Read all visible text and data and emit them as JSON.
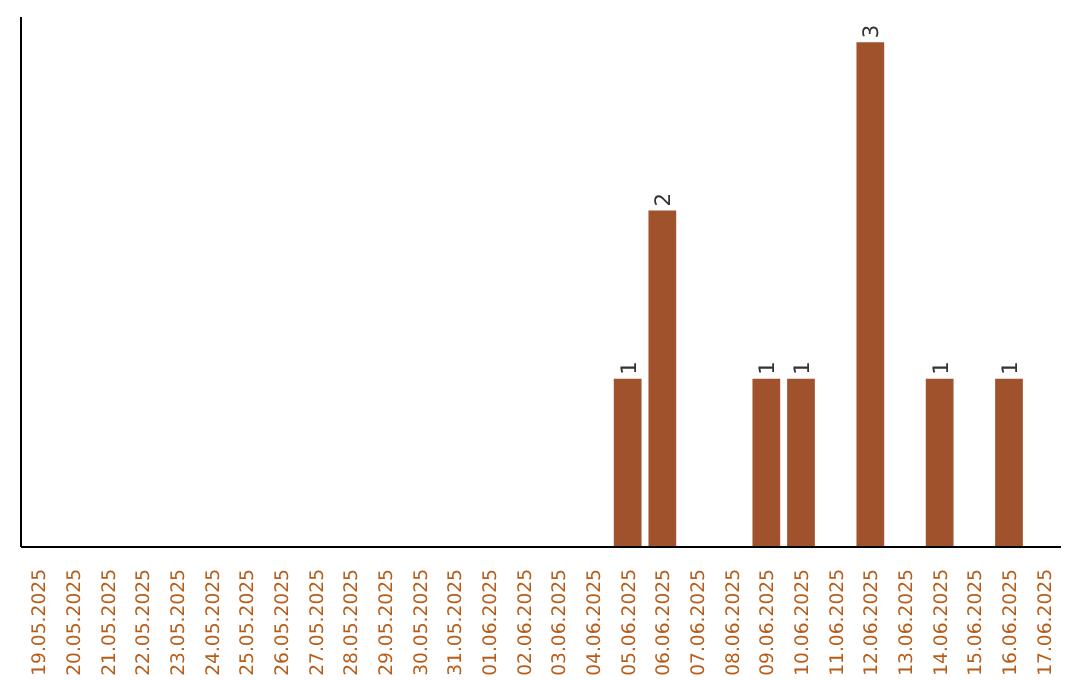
{
  "chart_data": {
    "type": "bar",
    "categories": [
      "19.05.2025",
      "20.05.2025",
      "21.05.2025",
      "22.05.2025",
      "23.05.2025",
      "24.05.2025",
      "25.05.2025",
      "26.05.2025",
      "27.05.2025",
      "28.05.2025",
      "29.05.2025",
      "30.05.2025",
      "31.05.2025",
      "01.06.2025",
      "02.06.2025",
      "03.06.2025",
      "04.06.2025",
      "05.06.2025",
      "06.06.2025",
      "07.06.2025",
      "08.06.2025",
      "09.06.2025",
      "10.06.2025",
      "11.06.2025",
      "12.06.2025",
      "13.06.2025",
      "14.06.2025",
      "15.06.2025",
      "16.06.2025",
      "17.06.2025"
    ],
    "values": [
      null,
      null,
      null,
      null,
      null,
      null,
      null,
      null,
      null,
      null,
      null,
      null,
      null,
      null,
      null,
      null,
      null,
      1,
      2,
      null,
      null,
      1,
      1,
      null,
      3,
      null,
      1,
      null,
      1,
      null
    ],
    "ylim": [
      0,
      3.15
    ],
    "tick_labels": "x",
    "value_labels": [
      null,
      null,
      null,
      null,
      null,
      null,
      null,
      null,
      null,
      null,
      null,
      null,
      null,
      null,
      null,
      null,
      null,
      "1",
      "2",
      null,
      null,
      "1",
      "1",
      null,
      "3",
      null,
      "1",
      null,
      "1",
      null
    ],
    "color": "#a0522d",
    "grid": false
  }
}
